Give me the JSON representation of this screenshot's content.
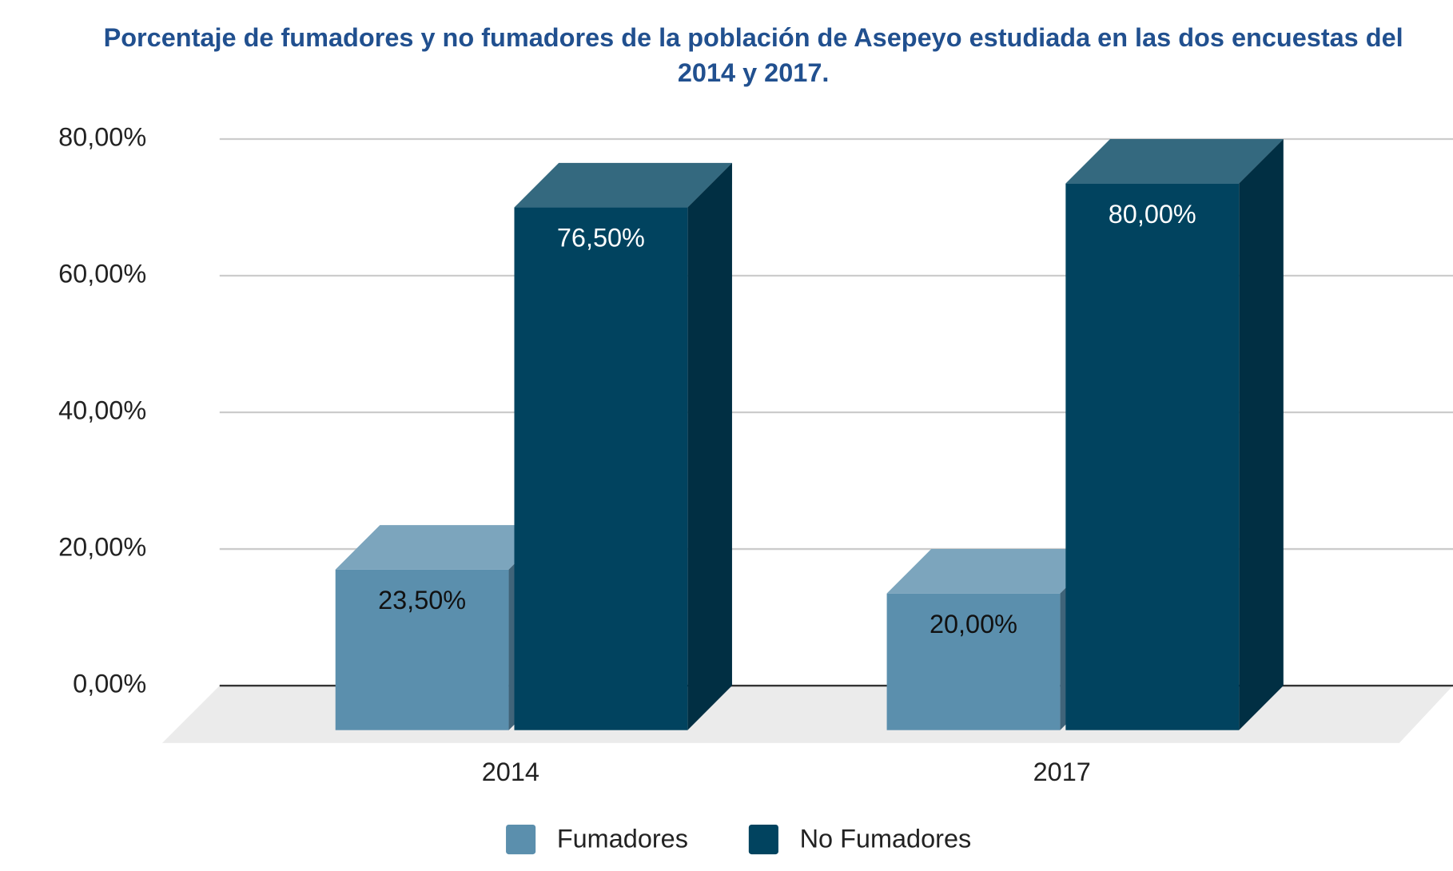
{
  "chart_data": {
    "type": "bar3d",
    "title": "Porcentaje de fumadores y no fumadores de la población de Asepeyo estudiada en las dos encuestas del 2014 y 2017.",
    "categories": [
      "2014",
      "2017"
    ],
    "series": [
      {
        "name": "Fumadores",
        "color": "#5b8fad",
        "values": [
          23.5,
          20
        ],
        "value_labels": [
          "23,50%",
          "20,00%"
        ]
      },
      {
        "name": "No Fumadores",
        "color": "#01435f",
        "values": [
          76.5,
          80
        ],
        "value_labels": [
          "76,50%",
          "80,00%"
        ]
      }
    ],
    "ylim": [
      0,
      80
    ],
    "yticks": [
      {
        "value": 0,
        "label": "0,00%"
      },
      {
        "value": 20,
        "label": "20,00%"
      },
      {
        "value": 40,
        "label": "40,00%"
      },
      {
        "value": 60,
        "label": "60,00%"
      },
      {
        "value": 80,
        "label": "80,00%"
      }
    ],
    "grid": true,
    "legend": "bottom"
  }
}
